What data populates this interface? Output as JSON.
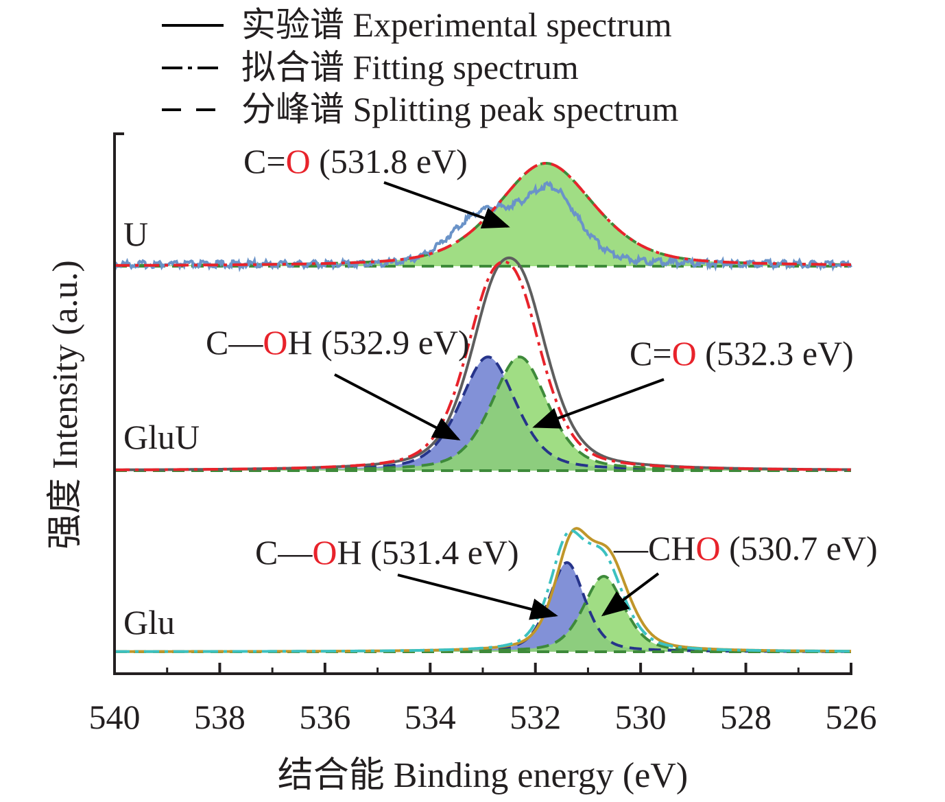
{
  "chart_data": {
    "type": "line",
    "xlabel": "结合能 Binding energy (eV)",
    "ylabel": "强度 Intensity (a.u.)",
    "xlim": [
      540,
      526
    ],
    "x_reversed": true,
    "xticks": [
      "540",
      "538",
      "536",
      "534",
      "532",
      "530",
      "528",
      "526"
    ],
    "grid": false,
    "legend_position": "top",
    "legend": [
      {
        "name": "实验谱 Experimental spectrum",
        "style": "solid"
      },
      {
        "name": "拟合谱 Fitting spectrum",
        "style": "dash-dot"
      },
      {
        "name": "分峰谱 Splitting peak spectrum",
        "style": "dashed"
      }
    ],
    "panels": [
      {
        "sample": "U",
        "peaks": [
          {
            "assignment_pre": "C=",
            "assignment_o": "O",
            "assignment_post": "",
            "energy": " (531.8 eV)",
            "center": 531.8,
            "relative_height": 1.0
          }
        ]
      },
      {
        "sample": "GluU",
        "peaks": [
          {
            "assignment_pre": "C—",
            "assignment_o": "O",
            "assignment_post": "H",
            "energy": " (532.9 eV)",
            "center": 532.9,
            "relative_height": 0.85
          },
          {
            "assignment_pre": "C=",
            "assignment_o": "O",
            "assignment_post": "",
            "energy": " (532.3 eV)",
            "center": 532.3,
            "relative_height": 0.85
          }
        ]
      },
      {
        "sample": "Glu",
        "peaks": [
          {
            "assignment_pre": "C—",
            "assignment_o": "O",
            "assignment_post": "H",
            "energy": " (531.4 eV)",
            "center": 531.4,
            "relative_height": 0.65
          },
          {
            "assignment_pre": "—CH",
            "assignment_o": "O",
            "assignment_post": "",
            "energy": " (530.7 eV)",
            "center": 530.7,
            "relative_height": 0.55
          }
        ]
      }
    ],
    "colors": {
      "axis": "#231f20",
      "fitting": "#e8232b",
      "experimental_u": "#6a93c8",
      "experimental_gluu": "#5e5e5e",
      "experimental_glu": "#c0962a",
      "fitting_glu": "#3cc1c1",
      "peak_green": "#8fd76f",
      "peak_green_line": "#3e8a3a",
      "peak_blue": "#6c7ed0",
      "peak_blue_line": "#26348a",
      "oxygen_highlight": "#e8232b"
    }
  }
}
